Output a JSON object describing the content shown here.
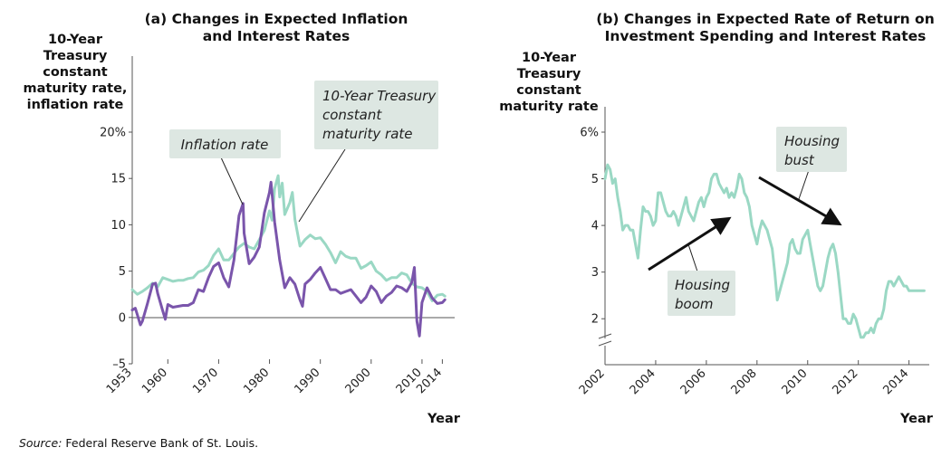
{
  "source": {
    "label": "Source:",
    "text": "Federal Reserve Bank of St. Louis."
  },
  "colors": {
    "treasury": "#9ad8c4",
    "inflation": "#7a55ab",
    "callout_bg": "#dde7e2",
    "axis": "#555555"
  },
  "chart_data": [
    {
      "type": "line",
      "title_line1": "(a) Changes in Expected Inflation",
      "title_line2": "and Interest Rates",
      "ylabel_lines": [
        "10-Year",
        "Treasury",
        "constant",
        "maturity rate,",
        "inflation rate"
      ],
      "xlabel": "Year",
      "ylim": [
        -5,
        20
      ],
      "xlim": [
        1953,
        2015
      ],
      "yticks": [
        -5,
        0,
        5,
        10,
        15,
        20
      ],
      "ytick_labels": [
        "–5",
        "0",
        "5",
        "10",
        "15",
        "20%"
      ],
      "xticks": [
        1953,
        1960,
        1970,
        1980,
        1990,
        2000,
        2010,
        2014
      ],
      "xtick_labels": [
        "1953",
        "1960",
        "1970",
        "1980",
        "1990",
        "2000",
        "2010",
        "2014"
      ],
      "grid": false,
      "annotations": {
        "inflation": "Inflation rate",
        "treasury_line1": "10-Year Treasury",
        "treasury_line2": "constant",
        "treasury_line3": "maturity rate"
      },
      "series": [
        {
          "name": "10-Year Treasury constant maturity rate",
          "color": "#9ad8c4",
          "x": [
            1953,
            1954,
            1955,
            1956,
            1957,
            1958,
            1959,
            1960,
            1961,
            1962,
            1963,
            1964,
            1965,
            1966,
            1967,
            1968,
            1969,
            1970,
            1971,
            1972,
            1973,
            1974,
            1975,
            1976,
            1977,
            1978,
            1979,
            1980,
            1980.5,
            1981,
            1981.7,
            1982,
            1982.5,
            1983,
            1984,
            1984.5,
            1985,
            1986,
            1987,
            1988,
            1989,
            1990,
            1991,
            1992,
            1993,
            1994,
            1995,
            1996,
            1997,
            1998,
            1999,
            2000,
            2001,
            2002,
            2003,
            2004,
            2005,
            2006,
            2007,
            2008,
            2009,
            2010,
            2011,
            2012,
            2013,
            2014,
            2014.5
          ],
          "y": [
            3.0,
            2.5,
            2.8,
            3.2,
            3.7,
            3.3,
            4.3,
            4.1,
            3.9,
            4.0,
            4.0,
            4.2,
            4.3,
            4.9,
            5.1,
            5.6,
            6.7,
            7.4,
            6.2,
            6.2,
            6.9,
            7.6,
            8.0,
            7.6,
            7.4,
            8.4,
            9.4,
            11.5,
            10.5,
            13.9,
            15.3,
            13.0,
            14.5,
            11.1,
            12.4,
            13.5,
            10.6,
            7.7,
            8.4,
            8.9,
            8.5,
            8.6,
            7.9,
            7.0,
            5.9,
            7.1,
            6.6,
            6.4,
            6.4,
            5.3,
            5.6,
            6.0,
            5.0,
            4.6,
            4.0,
            4.3,
            4.3,
            4.8,
            4.6,
            3.7,
            3.3,
            3.2,
            2.8,
            1.8,
            2.4,
            2.5,
            2.3
          ]
        },
        {
          "name": "Inflation rate",
          "color": "#7a55ab",
          "x": [
            1953,
            1953.6,
            1954,
            1954.6,
            1955,
            1956,
            1957,
            1957.6,
            1958,
            1959,
            1959.5,
            1960,
            1961,
            1962,
            1963,
            1964,
            1965,
            1966,
            1967,
            1968,
            1969,
            1970,
            1971,
            1972,
            1973,
            1974,
            1974.8,
            1975,
            1976,
            1977,
            1978,
            1979,
            1980,
            1980.3,
            1981,
            1982,
            1983,
            1984,
            1985,
            1986,
            1986.5,
            1987,
            1988,
            1989,
            1990,
            1991,
            1992,
            1993,
            1994,
            1995,
            1996,
            1997,
            1998,
            1999,
            2000,
            2001,
            2002,
            2003,
            2004,
            2005,
            2006,
            2007,
            2008,
            2008.5,
            2009,
            2009.5,
            2010,
            2011,
            2012,
            2013,
            2014,
            2014.5
          ],
          "y": [
            0.8,
            1.0,
            0.3,
            -0.8,
            -0.4,
            1.5,
            3.6,
            3.7,
            2.6,
            0.7,
            -0.2,
            1.4,
            1.1,
            1.2,
            1.3,
            1.3,
            1.6,
            3.0,
            2.8,
            4.3,
            5.5,
            5.9,
            4.3,
            3.3,
            6.2,
            11.0,
            12.3,
            9.1,
            5.8,
            6.5,
            7.6,
            11.3,
            13.5,
            14.6,
            10.3,
            6.2,
            3.2,
            4.3,
            3.6,
            1.9,
            1.2,
            3.6,
            4.1,
            4.8,
            5.4,
            4.2,
            3.0,
            3.0,
            2.6,
            2.8,
            3.0,
            2.3,
            1.6,
            2.2,
            3.4,
            2.8,
            1.6,
            2.3,
            2.7,
            3.4,
            3.2,
            2.8,
            3.8,
            5.4,
            -0.4,
            -2.0,
            1.6,
            3.2,
            2.1,
            1.5,
            1.6,
            1.9
          ]
        }
      ]
    },
    {
      "type": "line",
      "title_line1": "(b) Changes in Expected Rate of Return on",
      "title_line2": "Investment Spending and Interest Rates",
      "ylabel_lines": [
        "10-Year",
        "Treasury",
        "constant",
        "maturity rate"
      ],
      "xlabel": "Year",
      "ylim": [
        1.5,
        6
      ],
      "axis_break": true,
      "xlim": [
        2002,
        2014.8
      ],
      "yticks": [
        2,
        3,
        4,
        5,
        6
      ],
      "ytick_labels": [
        "2",
        "3",
        "4",
        "5",
        "6%"
      ],
      "xticks": [
        2002,
        2004,
        2006,
        2008,
        2010,
        2012,
        2014
      ],
      "xtick_labels": [
        "2002",
        "2004",
        "2006",
        "2008",
        "2010",
        "2012",
        "2014"
      ],
      "grid": false,
      "annotations": {
        "boom_line1": "Housing",
        "boom_line2": "boom",
        "bust_line1": "Housing",
        "bust_line2": "bust"
      },
      "series": [
        {
          "name": "10-Year Treasury constant maturity rate",
          "color": "#9ad8c4",
          "x": [
            2002.0,
            2002.1,
            2002.2,
            2002.3,
            2002.4,
            2002.5,
            2002.6,
            2002.7,
            2002.8,
            2002.9,
            2003.0,
            2003.1,
            2003.2,
            2003.3,
            2003.4,
            2003.5,
            2003.6,
            2003.7,
            2003.8,
            2003.9,
            2004.0,
            2004.1,
            2004.2,
            2004.3,
            2004.4,
            2004.5,
            2004.6,
            2004.7,
            2004.8,
            2004.9,
            2005.0,
            2005.1,
            2005.2,
            2005.3,
            2005.4,
            2005.5,
            2005.6,
            2005.7,
            2005.8,
            2005.9,
            2006.0,
            2006.1,
            2006.2,
            2006.3,
            2006.4,
            2006.5,
            2006.6,
            2006.7,
            2006.8,
            2006.9,
            2007.0,
            2007.1,
            2007.2,
            2007.3,
            2007.4,
            2007.5,
            2007.6,
            2007.7,
            2007.8,
            2007.9,
            2008.0,
            2008.1,
            2008.2,
            2008.3,
            2008.4,
            2008.5,
            2008.6,
            2008.7,
            2008.8,
            2008.9,
            2009.0,
            2009.1,
            2009.2,
            2009.3,
            2009.4,
            2009.5,
            2009.6,
            2009.7,
            2009.8,
            2009.9,
            2010.0,
            2010.1,
            2010.2,
            2010.3,
            2010.4,
            2010.5,
            2010.6,
            2010.7,
            2010.8,
            2010.9,
            2011.0,
            2011.1,
            2011.2,
            2011.3,
            2011.4,
            2011.5,
            2011.6,
            2011.7,
            2011.8,
            2011.9,
            2012.0,
            2012.1,
            2012.2,
            2012.3,
            2012.4,
            2012.5,
            2012.6,
            2012.7,
            2012.8,
            2012.9,
            2013.0,
            2013.1,
            2013.2,
            2013.3,
            2013.4,
            2013.5,
            2013.6,
            2013.7,
            2013.8,
            2013.9,
            2014.0,
            2014.1,
            2014.2,
            2014.3,
            2014.4,
            2014.5,
            2014.6
          ],
          "y": [
            5.0,
            5.3,
            5.2,
            4.9,
            5.0,
            4.6,
            4.3,
            3.9,
            4.0,
            4.0,
            3.9,
            3.9,
            3.6,
            3.3,
            3.9,
            4.4,
            4.3,
            4.3,
            4.2,
            4.0,
            4.1,
            4.7,
            4.7,
            4.5,
            4.3,
            4.2,
            4.2,
            4.3,
            4.2,
            4.0,
            4.2,
            4.4,
            4.6,
            4.3,
            4.2,
            4.1,
            4.3,
            4.5,
            4.6,
            4.4,
            4.6,
            4.7,
            5.0,
            5.1,
            5.1,
            4.9,
            4.8,
            4.7,
            4.8,
            4.6,
            4.7,
            4.6,
            4.8,
            5.1,
            5.0,
            4.7,
            4.6,
            4.4,
            4.0,
            3.8,
            3.6,
            3.9,
            4.1,
            4.0,
            3.9,
            3.7,
            3.5,
            3.0,
            2.4,
            2.6,
            2.8,
            3.0,
            3.2,
            3.6,
            3.7,
            3.5,
            3.4,
            3.4,
            3.7,
            3.8,
            3.9,
            3.6,
            3.3,
            3.0,
            2.7,
            2.6,
            2.7,
            3.0,
            3.3,
            3.5,
            3.6,
            3.4,
            3.0,
            2.5,
            2.0,
            2.0,
            1.9,
            1.9,
            2.1,
            2.0,
            1.8,
            1.6,
            1.6,
            1.7,
            1.7,
            1.8,
            1.7,
            1.9,
            2.0,
            2.0,
            2.2,
            2.6,
            2.8,
            2.8,
            2.7,
            2.8,
            2.9,
            2.8,
            2.7,
            2.7,
            2.6,
            2.6,
            2.6,
            2.6,
            2.6,
            2.6,
            2.6
          ]
        }
      ]
    }
  ]
}
